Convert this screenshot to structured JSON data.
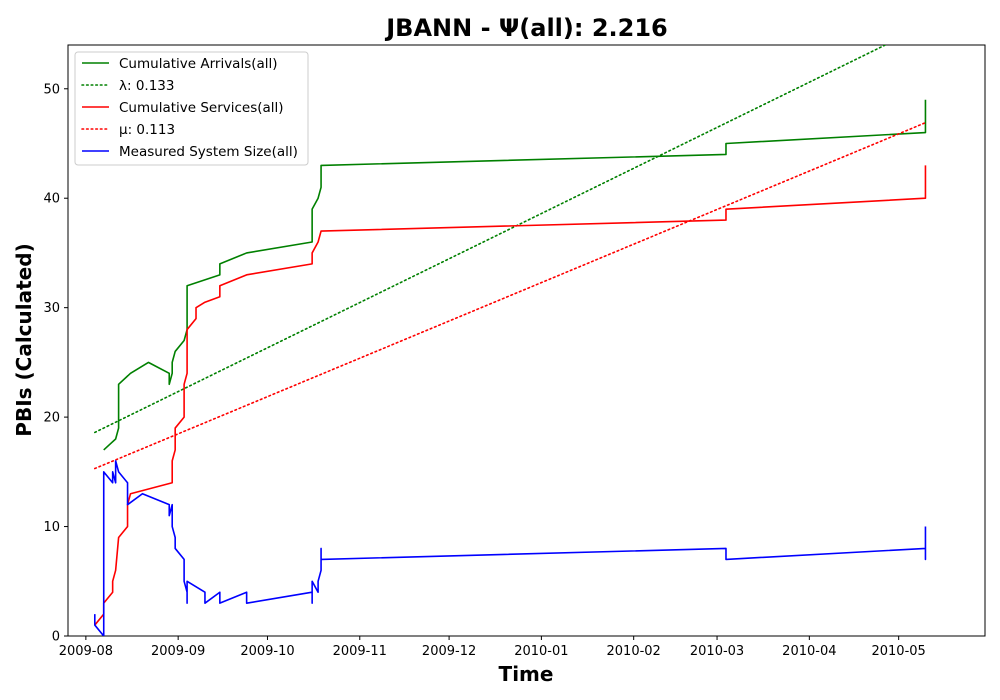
{
  "chart_data": {
    "type": "line",
    "title": "JBANN -  Ψ(all): 2.216",
    "xlabel": "Time",
    "ylabel": "PBIs (Calculated)",
    "xlim": [
      "2009-07-26",
      "2010-05-30"
    ],
    "ylim": [
      0,
      54
    ],
    "x_ticks": [
      "2009-08",
      "2009-09",
      "2009-10",
      "2009-11",
      "2009-12",
      "2010-01",
      "2010-02",
      "2010-03",
      "2010-04",
      "2010-05"
    ],
    "y_ticks": [
      0,
      10,
      20,
      30,
      40,
      50
    ],
    "grid": false,
    "legend_position": "upper-left",
    "series": [
      {
        "name": "Cumulative Arrivals(all)",
        "color": "#008000",
        "style": "solid",
        "points": [
          [
            "2009-08-07",
            17
          ],
          [
            "2009-08-09",
            17.5
          ],
          [
            "2009-08-11",
            18
          ],
          [
            "2009-08-12",
            19
          ],
          [
            "2009-08-12",
            23
          ],
          [
            "2009-08-16",
            24
          ],
          [
            "2009-08-22",
            25
          ],
          [
            "2009-08-29",
            24
          ],
          [
            "2009-08-29",
            23
          ],
          [
            "2009-08-30",
            24
          ],
          [
            "2009-08-30",
            25
          ],
          [
            "2009-08-31",
            26
          ],
          [
            "2009-09-03",
            27
          ],
          [
            "2009-09-04",
            28
          ],
          [
            "2009-09-04",
            32
          ],
          [
            "2009-09-15",
            33
          ],
          [
            "2009-09-15",
            34
          ],
          [
            "2009-09-24",
            35
          ],
          [
            "2009-10-16",
            36
          ],
          [
            "2009-10-16",
            39
          ],
          [
            "2009-10-18",
            40
          ],
          [
            "2009-10-19",
            41
          ],
          [
            "2009-10-19",
            43
          ],
          [
            "2010-03-04",
            44
          ],
          [
            "2010-03-04",
            45
          ],
          [
            "2010-05-10",
            46
          ],
          [
            "2010-05-10",
            49
          ]
        ]
      },
      {
        "name": "λ: 0.133",
        "color": "#008000",
        "style": "dotted",
        "points": [
          [
            "2009-08-04",
            18.6
          ],
          [
            "2010-05-10",
            55.8
          ]
        ]
      },
      {
        "name": "Cumulative Services(all)",
        "color": "#ff0000",
        "style": "solid",
        "points": [
          [
            "2009-08-04",
            1
          ],
          [
            "2009-08-07",
            2
          ],
          [
            "2009-08-07",
            3
          ],
          [
            "2009-08-10",
            4
          ],
          [
            "2009-08-10",
            5
          ],
          [
            "2009-08-11",
            6
          ],
          [
            "2009-08-12",
            9
          ],
          [
            "2009-08-15",
            10
          ],
          [
            "2009-08-15",
            12
          ],
          [
            "2009-08-16",
            13
          ],
          [
            "2009-08-30",
            14
          ],
          [
            "2009-08-30",
            16
          ],
          [
            "2009-08-31",
            17
          ],
          [
            "2009-08-31",
            19
          ],
          [
            "2009-09-03",
            20
          ],
          [
            "2009-09-03",
            23
          ],
          [
            "2009-09-04",
            24
          ],
          [
            "2009-09-04",
            28
          ],
          [
            "2009-09-07",
            29
          ],
          [
            "2009-09-07",
            30
          ],
          [
            "2009-09-10",
            30.5
          ],
          [
            "2009-09-15",
            31
          ],
          [
            "2009-09-15",
            32
          ],
          [
            "2009-09-24",
            33
          ],
          [
            "2009-10-16",
            34
          ],
          [
            "2009-10-16",
            35
          ],
          [
            "2009-10-18",
            36
          ],
          [
            "2009-10-19",
            37
          ],
          [
            "2010-03-04",
            38
          ],
          [
            "2010-03-04",
            39
          ],
          [
            "2010-05-10",
            40
          ],
          [
            "2010-05-10",
            43
          ]
        ]
      },
      {
        "name": "μ: 0.113",
        "color": "#ff0000",
        "style": "dotted",
        "points": [
          [
            "2009-08-04",
            15.3
          ],
          [
            "2010-05-10",
            46.9
          ]
        ]
      },
      {
        "name": "Measured System Size(all)",
        "color": "#0000ff",
        "style": "solid",
        "points": [
          [
            "2009-08-04",
            2
          ],
          [
            "2009-08-04",
            1
          ],
          [
            "2009-08-07",
            0
          ],
          [
            "2009-08-07",
            15
          ],
          [
            "2009-08-07",
            10
          ],
          [
            "2009-08-07",
            9
          ],
          [
            "2009-08-07",
            15
          ],
          [
            "2009-08-10",
            14
          ],
          [
            "2009-08-10",
            15
          ],
          [
            "2009-08-11",
            14
          ],
          [
            "2009-08-11",
            16
          ],
          [
            "2009-08-12",
            15
          ],
          [
            "2009-08-15",
            14
          ],
          [
            "2009-08-15",
            12
          ],
          [
            "2009-08-20",
            13
          ],
          [
            "2009-08-29",
            12
          ],
          [
            "2009-08-29",
            11
          ],
          [
            "2009-08-30",
            12
          ],
          [
            "2009-08-30",
            10
          ],
          [
            "2009-08-31",
            9
          ],
          [
            "2009-08-31",
            8
          ],
          [
            "2009-09-03",
            7
          ],
          [
            "2009-09-03",
            5
          ],
          [
            "2009-09-04",
            4
          ],
          [
            "2009-09-04",
            3
          ],
          [
            "2009-09-04",
            5
          ],
          [
            "2009-09-10",
            4
          ],
          [
            "2009-09-10",
            3
          ],
          [
            "2009-09-15",
            4
          ],
          [
            "2009-09-15",
            3
          ],
          [
            "2009-09-24",
            4
          ],
          [
            "2009-09-24",
            3
          ],
          [
            "2009-10-16",
            4
          ],
          [
            "2009-10-16",
            3
          ],
          [
            "2009-10-16",
            5
          ],
          [
            "2009-10-18",
            4
          ],
          [
            "2009-10-18",
            5
          ],
          [
            "2009-10-19",
            6
          ],
          [
            "2009-10-19",
            8
          ],
          [
            "2009-10-19",
            7
          ],
          [
            "2010-03-04",
            8
          ],
          [
            "2010-03-04",
            7
          ],
          [
            "2010-05-10",
            8
          ],
          [
            "2010-05-10",
            7
          ],
          [
            "2010-05-10",
            10
          ]
        ]
      }
    ]
  }
}
